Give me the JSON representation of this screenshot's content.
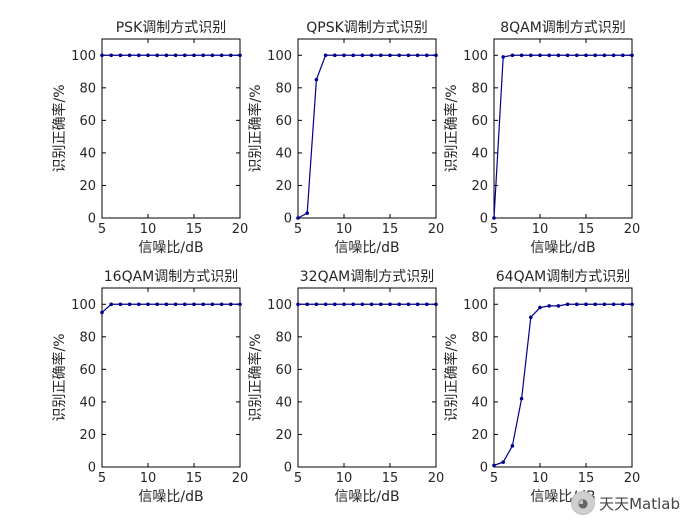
{
  "chart_data": [
    {
      "type": "line",
      "title": "PSK调制方式识别",
      "xlabel": "信噪比/dB",
      "ylabel": "识别正确率/%",
      "xlim": [
        5,
        20
      ],
      "ylim": [
        0,
        110
      ],
      "xticks": [
        5,
        10,
        15,
        20
      ],
      "yticks": [
        0,
        20,
        40,
        60,
        80,
        100
      ],
      "grid": false,
      "x": [
        5,
        6,
        7,
        8,
        9,
        10,
        11,
        12,
        13,
        14,
        15,
        16,
        17,
        18,
        19,
        20
      ],
      "series": [
        {
          "values": [
            100,
            100,
            100,
            100,
            100,
            100,
            100,
            100,
            100,
            100,
            100,
            100,
            100,
            100,
            100,
            100
          ]
        }
      ]
    },
    {
      "type": "line",
      "title": "QPSK调制方式识别",
      "xlabel": "信噪比/dB",
      "ylabel": "识别正确率/%",
      "xlim": [
        5,
        20
      ],
      "ylim": [
        0,
        110
      ],
      "xticks": [
        5,
        10,
        15,
        20
      ],
      "yticks": [
        0,
        20,
        40,
        60,
        80,
        100
      ],
      "grid": false,
      "x": [
        5,
        6,
        7,
        8,
        9,
        10,
        11,
        12,
        13,
        14,
        15,
        16,
        17,
        18,
        19,
        20
      ],
      "series": [
        {
          "values": [
            0,
            3,
            85,
            100,
            100,
            100,
            100,
            100,
            100,
            100,
            100,
            100,
            100,
            100,
            100,
            100
          ]
        }
      ]
    },
    {
      "type": "line",
      "title": "8QAM调制方式识别",
      "xlabel": "信噪比/dB",
      "ylabel": "识别正确率/%",
      "xlim": [
        5,
        20
      ],
      "ylim": [
        0,
        110
      ],
      "xticks": [
        5,
        10,
        15,
        20
      ],
      "yticks": [
        0,
        20,
        40,
        60,
        80,
        100
      ],
      "grid": false,
      "x": [
        5,
        6,
        7,
        8,
        9,
        10,
        11,
        12,
        13,
        14,
        15,
        16,
        17,
        18,
        19,
        20
      ],
      "series": [
        {
          "values": [
            0,
            99,
            100,
            100,
            100,
            100,
            100,
            100,
            100,
            100,
            100,
            100,
            100,
            100,
            100,
            100
          ]
        }
      ]
    },
    {
      "type": "line",
      "title": "16QAM调制方式识别",
      "xlabel": "信噪比/dB",
      "ylabel": "识别正确率/%",
      "xlim": [
        5,
        20
      ],
      "ylim": [
        0,
        110
      ],
      "xticks": [
        5,
        10,
        15,
        20
      ],
      "yticks": [
        0,
        20,
        40,
        60,
        80,
        100
      ],
      "grid": false,
      "x": [
        5,
        6,
        7,
        8,
        9,
        10,
        11,
        12,
        13,
        14,
        15,
        16,
        17,
        18,
        19,
        20
      ],
      "series": [
        {
          "values": [
            95,
            100,
            100,
            100,
            100,
            100,
            100,
            100,
            100,
            100,
            100,
            100,
            100,
            100,
            100,
            100
          ]
        }
      ]
    },
    {
      "type": "line",
      "title": "32QAM调制方式识别",
      "xlabel": "信噪比/dB",
      "ylabel": "识别正确率/%",
      "xlim": [
        5,
        20
      ],
      "ylim": [
        0,
        110
      ],
      "xticks": [
        5,
        10,
        15,
        20
      ],
      "yticks": [
        0,
        20,
        40,
        60,
        80,
        100
      ],
      "grid": false,
      "x": [
        5,
        6,
        7,
        8,
        9,
        10,
        11,
        12,
        13,
        14,
        15,
        16,
        17,
        18,
        19,
        20
      ],
      "series": [
        {
          "values": [
            100,
            100,
            100,
            100,
            100,
            100,
            100,
            100,
            100,
            100,
            100,
            100,
            100,
            100,
            100,
            100
          ]
        }
      ]
    },
    {
      "type": "line",
      "title": "64QAM调制方式识别",
      "xlabel": "信噪比/dB",
      "ylabel": "识别正确率/%",
      "xlim": [
        5,
        20
      ],
      "ylim": [
        0,
        110
      ],
      "xticks": [
        5,
        10,
        15,
        20
      ],
      "yticks": [
        0,
        20,
        40,
        60,
        80,
        100
      ],
      "grid": false,
      "x": [
        5,
        6,
        7,
        8,
        9,
        10,
        11,
        12,
        13,
        14,
        15,
        16,
        17,
        18,
        19,
        20
      ],
      "series": [
        {
          "values": [
            1,
            3,
            13,
            42,
            92,
            98,
            99,
            99,
            100,
            100,
            100,
            100,
            100,
            100,
            100,
            100
          ]
        }
      ]
    }
  ],
  "style": {
    "line_color": "#00008b",
    "axis_color": "#000000",
    "text_color": "#262626"
  },
  "watermark": {
    "text": "天天Matlab",
    "icon": "wechat-icon"
  }
}
